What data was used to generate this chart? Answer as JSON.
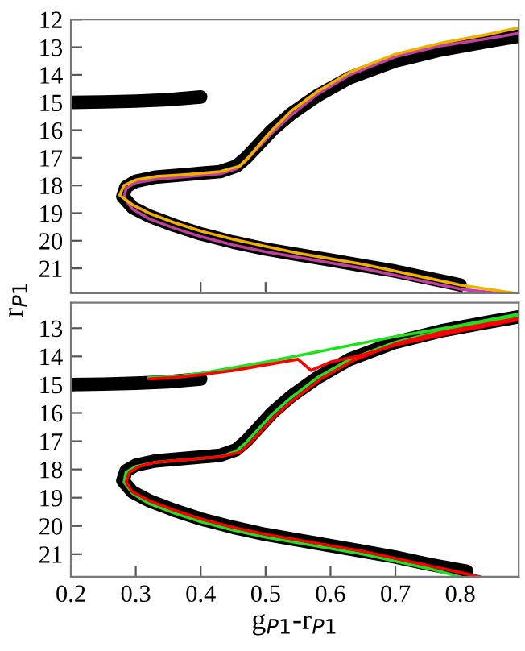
{
  "chart_data": [
    {
      "type": "line",
      "ylabel": "r$_{P1}$",
      "xlim": [
        0.2,
        0.89
      ],
      "ylim": [
        21.9,
        12
      ],
      "xticks": [
        {
          "value": 0.4,
          "label": null
        },
        {
          "value": 0.5,
          "label": null
        },
        {
          "value": 0.8,
          "label": null
        }
      ],
      "yticks": [
        12,
        13,
        14,
        15,
        16,
        17,
        18,
        19,
        20,
        21
      ],
      "tick_labels": "y",
      "grid": false,
      "legend": false,
      "series": [
        {
          "color": "#000000",
          "x": [
            0.8,
            0.75,
            0.7,
            0.65,
            0.6,
            0.55,
            0.5,
            0.45,
            0.4,
            0.36,
            0.32,
            0.295,
            0.28,
            0.285,
            0.3,
            0.33,
            0.38,
            0.43,
            0.455,
            0.47,
            0.49,
            0.51,
            0.54,
            0.58,
            0.63,
            0.7,
            0.77,
            0.84,
            0.89
          ],
          "values": [
            21.6,
            21.35,
            21.1,
            20.9,
            20.7,
            20.5,
            20.3,
            20.05,
            19.75,
            19.45,
            19.1,
            18.8,
            18.4,
            18.05,
            17.85,
            17.7,
            17.6,
            17.5,
            17.3,
            17.0,
            16.5,
            16.0,
            15.4,
            14.75,
            14.1,
            13.5,
            13.1,
            12.8,
            12.6
          ]
        },
        {
          "color": "#000000",
          "x": [
            0.2,
            0.25,
            0.3,
            0.35,
            0.4
          ],
          "values": [
            15.0,
            14.98,
            14.95,
            14.9,
            14.8
          ]
        },
        {
          "color": "#c040a0",
          "x": [
            0.86,
            0.8,
            0.75,
            0.7,
            0.65,
            0.6,
            0.55,
            0.5,
            0.45,
            0.4,
            0.36,
            0.32,
            0.295,
            0.282,
            0.285,
            0.3,
            0.33,
            0.38,
            0.43,
            0.455,
            0.47,
            0.49,
            0.51,
            0.54,
            0.58,
            0.63,
            0.7,
            0.77,
            0.84,
            0.89
          ],
          "values": [
            21.9,
            21.75,
            21.5,
            21.25,
            21.0,
            20.8,
            20.6,
            20.4,
            20.15,
            19.85,
            19.55,
            19.2,
            18.85,
            18.45,
            18.1,
            17.9,
            17.78,
            17.68,
            17.58,
            17.4,
            17.1,
            16.6,
            16.1,
            15.45,
            14.7,
            14.0,
            13.35,
            12.95,
            12.7,
            12.5
          ]
        },
        {
          "color": "#f0b000",
          "x": [
            0.885,
            0.8,
            0.75,
            0.7,
            0.65,
            0.6,
            0.55,
            0.5,
            0.45,
            0.4,
            0.36,
            0.32,
            0.295,
            0.275,
            0.282,
            0.3,
            0.33,
            0.38,
            0.43,
            0.46,
            0.475,
            0.495,
            0.51,
            0.54,
            0.58,
            0.63,
            0.7,
            0.77,
            0.84,
            0.89
          ],
          "values": [
            21.9,
            21.6,
            21.35,
            21.1,
            20.85,
            20.65,
            20.45,
            20.2,
            19.95,
            19.65,
            19.35,
            19.0,
            18.7,
            18.35,
            18.0,
            17.8,
            17.68,
            17.6,
            17.5,
            17.3,
            16.95,
            16.4,
            16.0,
            15.3,
            14.6,
            13.9,
            13.25,
            12.85,
            12.55,
            12.3
          ]
        }
      ]
    },
    {
      "type": "line",
      "xlabel": "g$_{P1}$-r$_{P1}$",
      "xlim": [
        0.2,
        0.89
      ],
      "ylim": [
        21.8,
        12.1
      ],
      "xticks": [
        0.2,
        0.3,
        0.4,
        0.5,
        0.6,
        0.7,
        0.8
      ],
      "yticks": [
        13,
        14,
        15,
        16,
        17,
        18,
        19,
        20,
        21
      ],
      "grid": false,
      "legend": false,
      "series": [
        {
          "color": "#000000",
          "x": [
            0.81,
            0.75,
            0.7,
            0.65,
            0.6,
            0.55,
            0.5,
            0.45,
            0.4,
            0.36,
            0.32,
            0.295,
            0.28,
            0.285,
            0.3,
            0.33,
            0.38,
            0.43,
            0.455,
            0.47,
            0.49,
            0.51,
            0.54,
            0.58,
            0.63,
            0.7,
            0.77,
            0.84,
            0.89
          ],
          "values": [
            21.6,
            21.35,
            21.1,
            20.9,
            20.7,
            20.5,
            20.3,
            20.05,
            19.75,
            19.45,
            19.1,
            18.8,
            18.4,
            18.05,
            17.85,
            17.7,
            17.6,
            17.5,
            17.3,
            17.0,
            16.5,
            16.0,
            15.4,
            14.75,
            14.1,
            13.5,
            13.1,
            12.8,
            12.6
          ]
        },
        {
          "color": "#000000",
          "x": [
            0.2,
            0.25,
            0.3,
            0.35,
            0.4
          ],
          "values": [
            15.0,
            14.98,
            14.95,
            14.9,
            14.8
          ]
        },
        {
          "color": "#20e020",
          "x": [
            0.8,
            0.75,
            0.7,
            0.65,
            0.6,
            0.55,
            0.5,
            0.45,
            0.4,
            0.36,
            0.32,
            0.295,
            0.282,
            0.285,
            0.3,
            0.33,
            0.38,
            0.43,
            0.455,
            0.47,
            0.49,
            0.51,
            0.54,
            0.58,
            0.63,
            0.7,
            0.77,
            0.84,
            0.89
          ],
          "values": [
            21.8,
            21.5,
            21.25,
            21.0,
            20.8,
            20.6,
            20.4,
            20.15,
            19.85,
            19.55,
            19.2,
            18.85,
            18.45,
            18.1,
            17.9,
            17.75,
            17.65,
            17.55,
            17.35,
            17.05,
            16.55,
            16.05,
            15.45,
            14.75,
            14.1,
            13.5,
            13.1,
            12.8,
            12.6
          ]
        },
        {
          "color": "#20e020",
          "x": [
            0.32,
            0.36,
            0.4,
            0.5,
            0.6,
            0.7,
            0.8,
            0.89
          ],
          "values": [
            14.75,
            14.72,
            14.6,
            14.2,
            13.75,
            13.3,
            12.9,
            12.5
          ]
        },
        {
          "color": "#ff0000",
          "x": [
            0.83,
            0.8,
            0.75,
            0.7,
            0.65,
            0.6,
            0.55,
            0.5,
            0.45,
            0.4,
            0.36,
            0.32,
            0.295,
            0.285,
            0.29,
            0.305,
            0.33,
            0.38,
            0.43,
            0.46,
            0.475,
            0.495,
            0.515,
            0.545,
            0.585,
            0.635,
            0.7,
            0.77,
            0.84,
            0.89
          ],
          "values": [
            21.8,
            21.65,
            21.4,
            21.15,
            20.9,
            20.7,
            20.5,
            20.3,
            20.05,
            19.75,
            19.45,
            19.1,
            18.8,
            18.45,
            18.1,
            17.9,
            17.75,
            17.65,
            17.55,
            17.4,
            17.1,
            16.6,
            16.1,
            15.5,
            14.8,
            14.15,
            13.55,
            13.15,
            12.85,
            12.65
          ]
        },
        {
          "color": "#ff0000",
          "x": [
            0.32,
            0.36,
            0.4,
            0.45,
            0.5,
            0.55,
            0.57,
            0.6,
            0.65,
            0.7,
            0.8,
            0.89
          ],
          "values": [
            14.8,
            14.75,
            14.65,
            14.5,
            14.3,
            14.1,
            14.5,
            14.2,
            13.95,
            13.6,
            13.1,
            12.7
          ]
        }
      ]
    }
  ]
}
